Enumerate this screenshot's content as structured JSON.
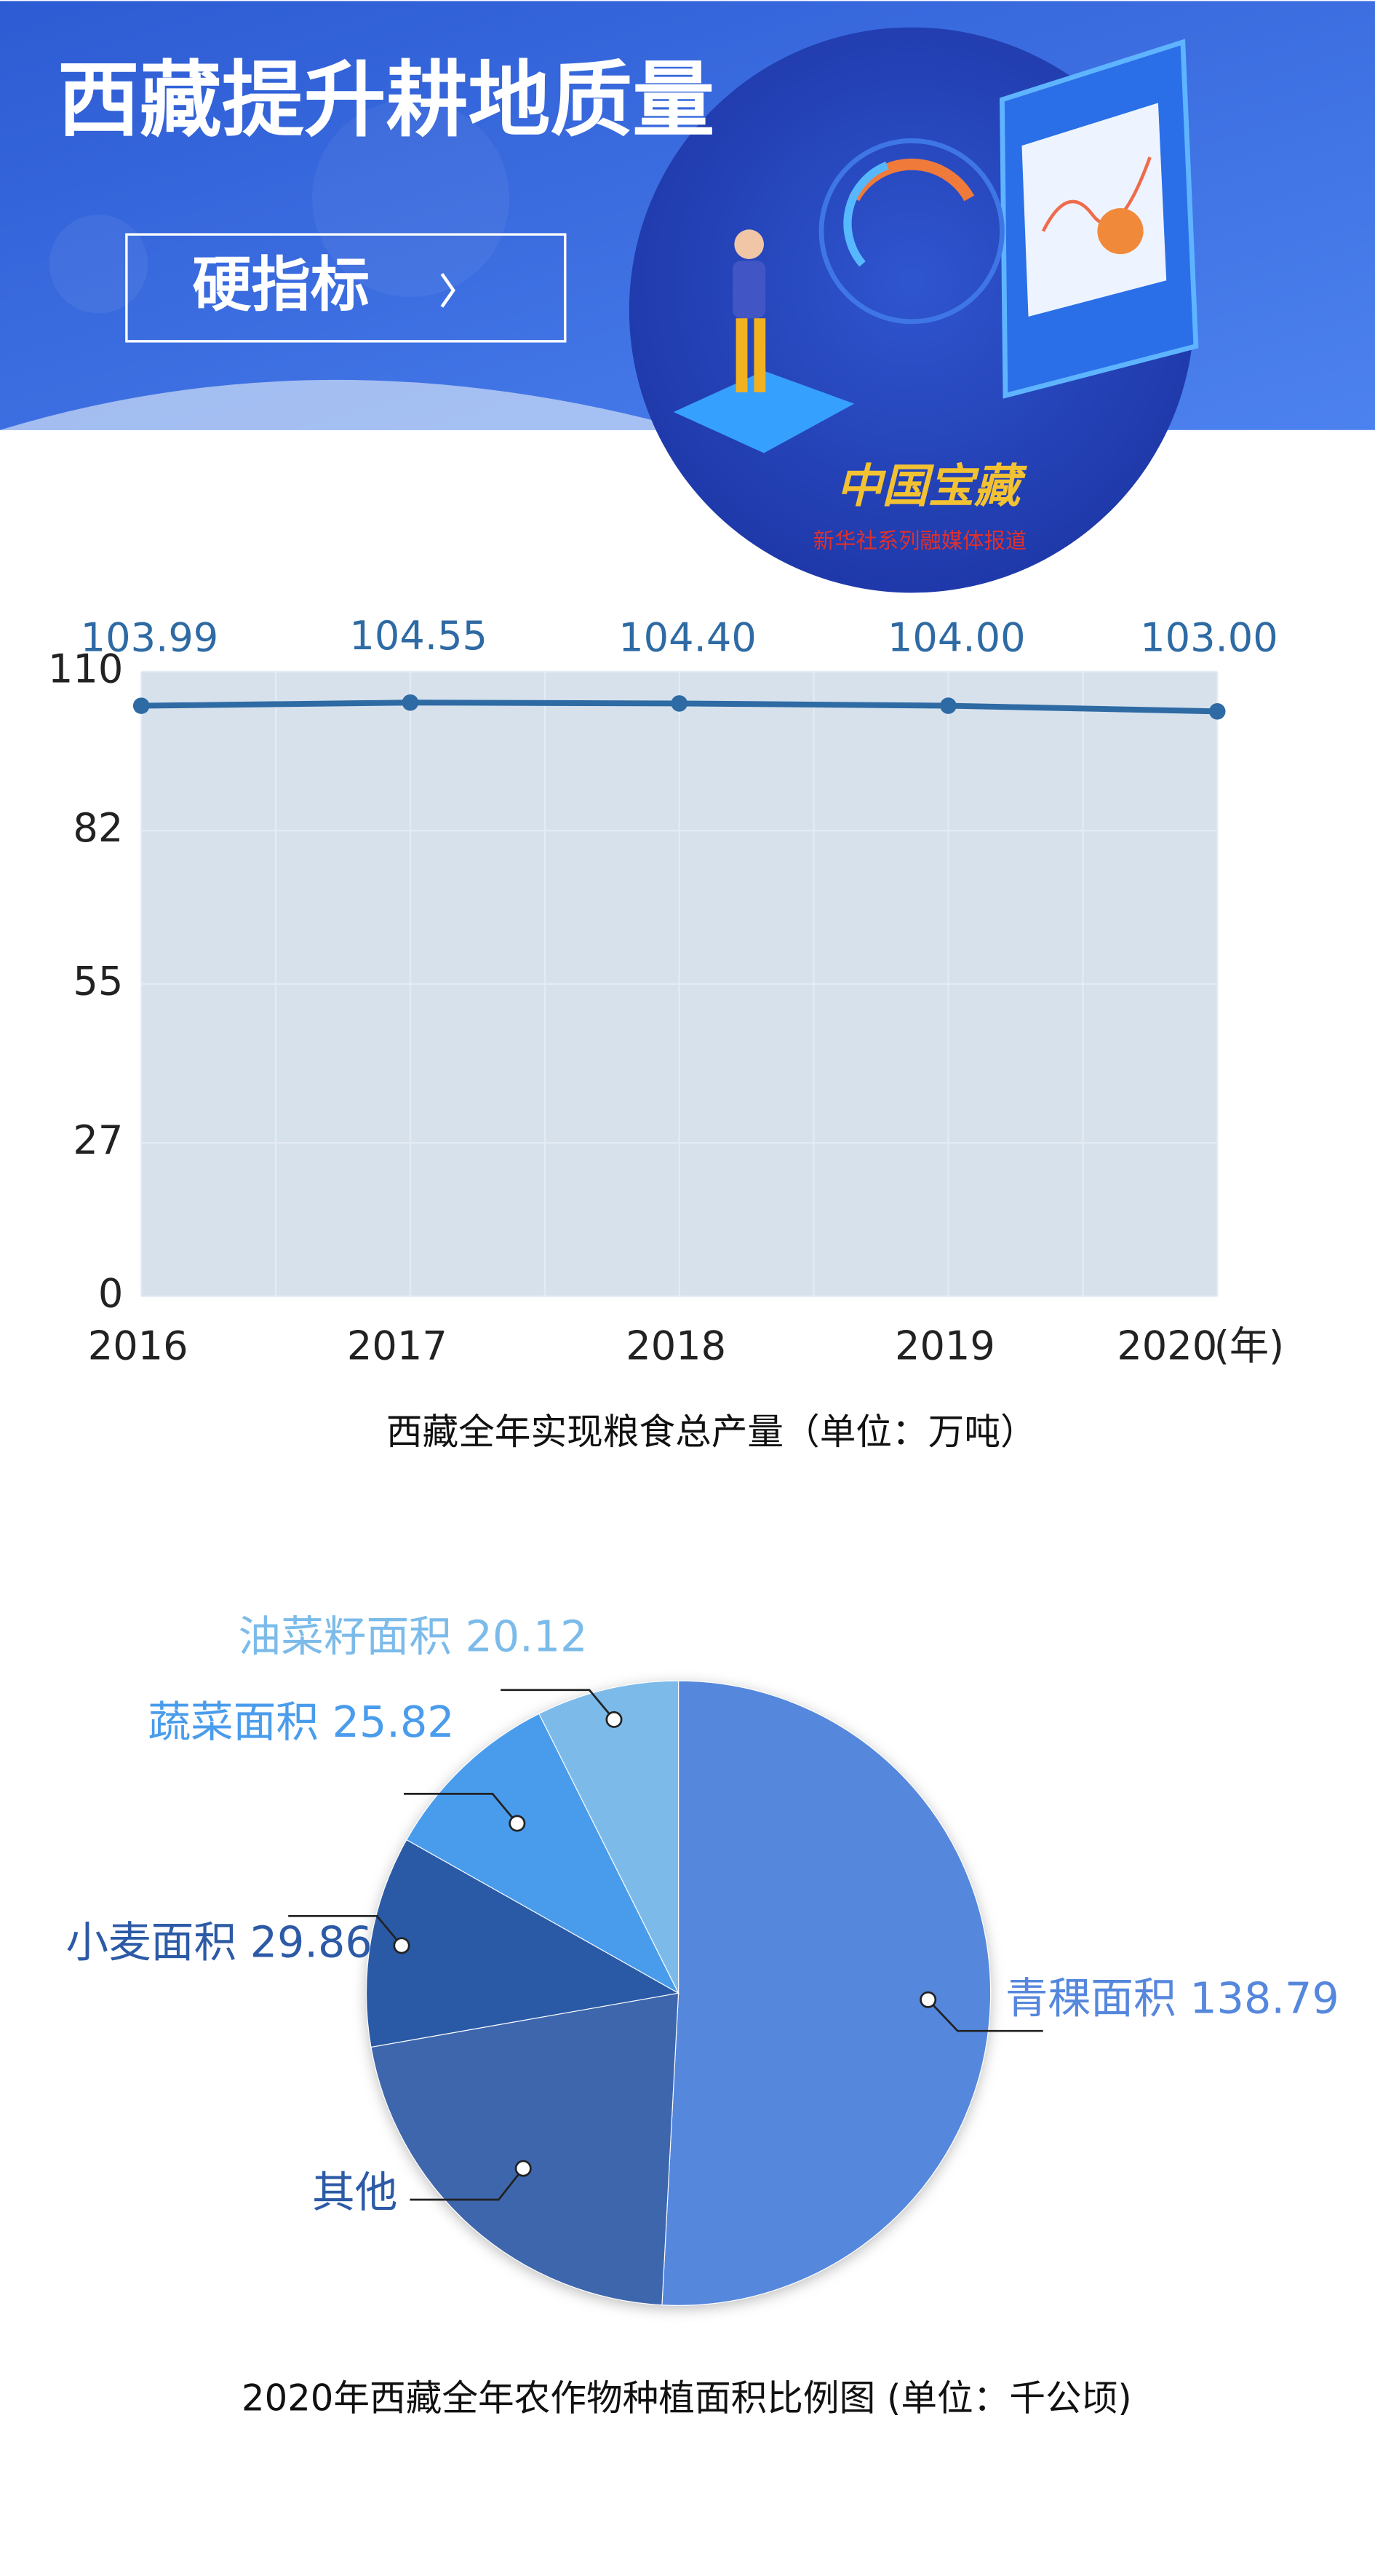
{
  "header": {
    "title": "西藏提升耕地质量",
    "button": "硬指标",
    "logo": "中国宝藏",
    "logo_subtitle": "新华社系列融媒体报道"
  },
  "chart_data": [
    {
      "type": "line",
      "categories": [
        "2016",
        "2017",
        "2018",
        "2019",
        "2020"
      ],
      "x_unit": "(年)",
      "values": [
        103.99,
        104.55,
        104.4,
        104.0,
        103.0
      ],
      "value_labels": [
        "103.99",
        "104.55",
        "104.40",
        "104.00",
        "103.00"
      ],
      "color": "#2e6aa3",
      "ylim": [
        0,
        110
      ],
      "yticks": [
        0,
        27,
        55,
        82,
        110
      ],
      "grid": true,
      "caption": "西藏全年实现粮食总产量（单位：万吨）"
    },
    {
      "type": "pie",
      "categories": [
        "青稞面积",
        "其他",
        "小麦面积",
        "蔬菜面积",
        "油菜籽面积"
      ],
      "values": [
        138.79,
        58.4,
        29.86,
        25.82,
        20.12
      ],
      "colors": [
        "#5587dd",
        "#3d66ad",
        "#2c5aa6",
        "#4a9cec",
        "#7cbbe9"
      ],
      "label_colors": [
        "#5587dd",
        "#2c5aa6",
        "#2c5aa6",
        "#4a9cec",
        "#7cbbe9"
      ],
      "value_printed": [
        true,
        false,
        true,
        true,
        true
      ],
      "caption": "2020年西藏全年农作物种植面积比例图 (单位：千公顷)"
    }
  ]
}
